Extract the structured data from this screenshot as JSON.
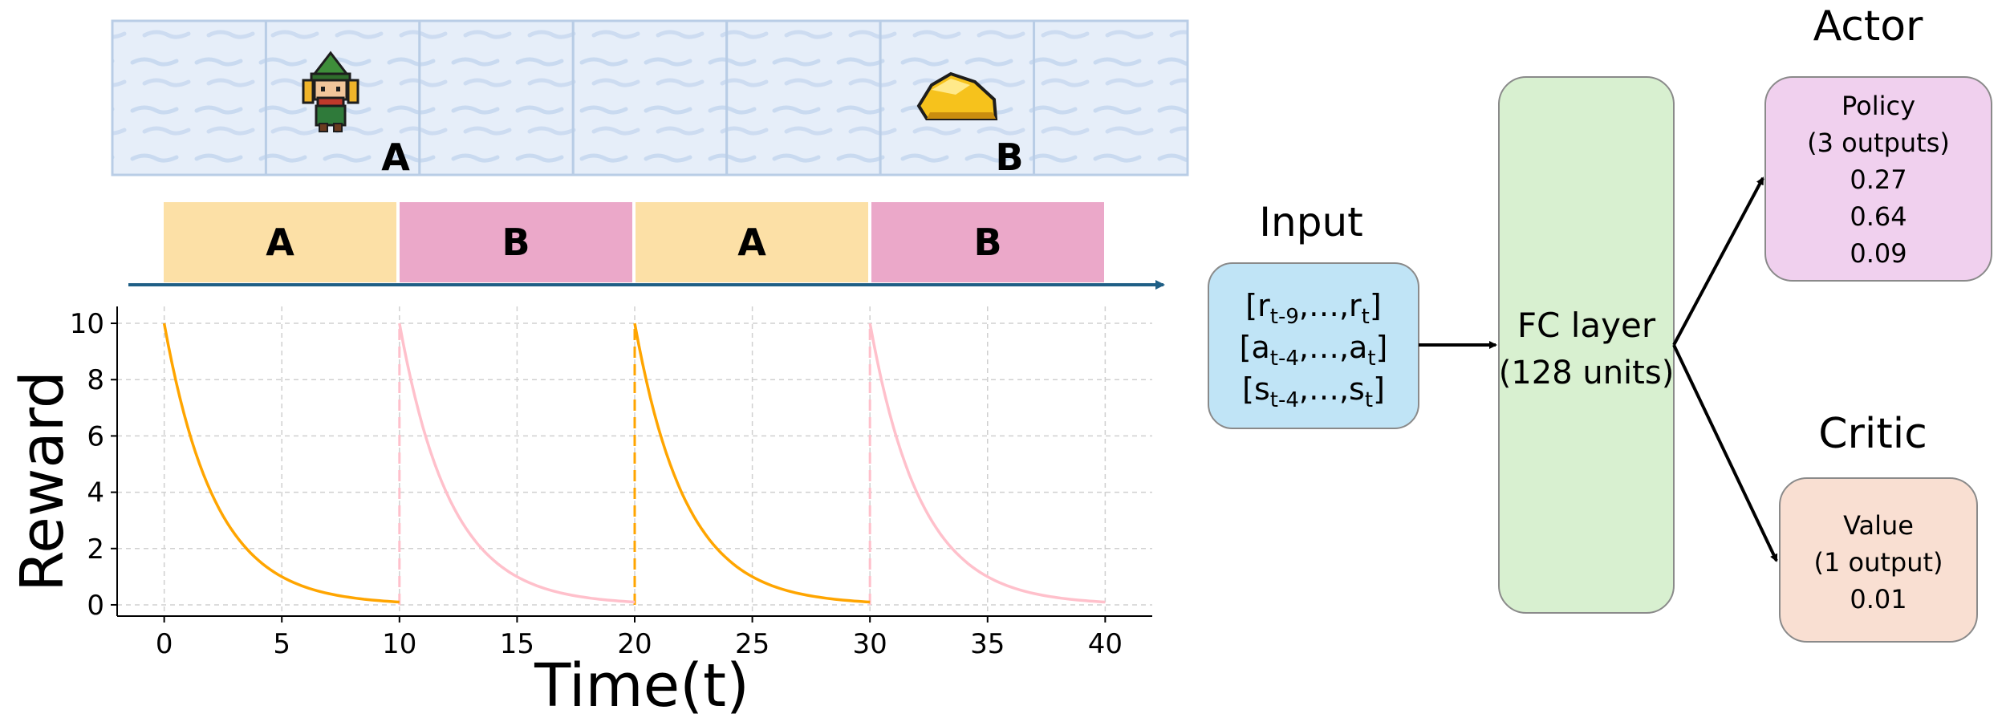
{
  "environment": {
    "agent_label": "A",
    "goal_label": "B",
    "cell_count": 7,
    "tile_color": "#dfeaf7",
    "tile_border": "#b9cde6"
  },
  "phase_bar": {
    "segments": [
      {
        "label": "A",
        "color": "#fce0a6"
      },
      {
        "label": "B",
        "color": "#eba8c9"
      },
      {
        "label": "A",
        "color": "#fce0a6"
      },
      {
        "label": "B",
        "color": "#eba8c9"
      }
    ],
    "arrow_color": "#1f5f86"
  },
  "chart_data": {
    "type": "line",
    "xlabel": "Time(t)",
    "ylabel": "Reward",
    "xlim": [
      -2,
      42
    ],
    "ylim": [
      -0.4,
      10.6
    ],
    "xticks": [
      0,
      5,
      10,
      15,
      20,
      25,
      30,
      35,
      40
    ],
    "yticks": [
      0,
      2,
      4,
      6,
      8,
      10
    ],
    "grid": true,
    "series": [
      {
        "segment": "A",
        "color": "#ffa500",
        "x": [
          0,
          1,
          2,
          3,
          4,
          5,
          6,
          7,
          8,
          9,
          10
        ],
        "values": [
          10.0,
          6.7,
          4.49,
          3.01,
          2.02,
          1.35,
          0.91,
          0.61,
          0.41,
          0.27,
          0.1
        ]
      },
      {
        "segment": "B",
        "color": "#ffc0cb",
        "x": [
          10,
          11,
          12,
          13,
          14,
          15,
          16,
          17,
          18,
          19,
          20
        ],
        "values": [
          10.0,
          6.7,
          4.49,
          3.01,
          2.02,
          1.35,
          0.91,
          0.61,
          0.41,
          0.27,
          0.1
        ]
      },
      {
        "segment": "A",
        "color": "#ffa500",
        "x": [
          20,
          21,
          22,
          23,
          24,
          25,
          26,
          27,
          28,
          29,
          30
        ],
        "values": [
          10.0,
          6.7,
          4.49,
          3.01,
          2.02,
          1.35,
          0.91,
          0.61,
          0.41,
          0.27,
          0.1
        ]
      },
      {
        "segment": "B",
        "color": "#ffc0cb",
        "x": [
          30,
          31,
          32,
          33,
          34,
          35,
          36,
          37,
          38,
          39,
          40
        ],
        "values": [
          10.0,
          6.7,
          4.49,
          3.01,
          2.02,
          1.35,
          0.91,
          0.61,
          0.41,
          0.27,
          0.1
        ]
      }
    ],
    "switch_lines": [
      {
        "x": 10,
        "color": "#ffc0cb"
      },
      {
        "x": 20,
        "color": "#ffa500"
      },
      {
        "x": 30,
        "color": "#ffc0cb"
      }
    ]
  },
  "network": {
    "input": {
      "title": "Input",
      "rows": [
        {
          "open": "[",
          "v1": "r",
          "s1": "t-9",
          "mid": ",…,",
          "v2": "r",
          "s2": "t",
          "close": "]"
        },
        {
          "open": "[",
          "v1": "a",
          "s1": "t-4",
          "mid": ",…,",
          "v2": "a",
          "s2": "t",
          "close": "]"
        },
        {
          "open": "[",
          "v1": "s",
          "s1": "t-4",
          "mid": ",…,",
          "v2": "s",
          "s2": "t",
          "close": "]"
        }
      ],
      "color": "#c0e4f6"
    },
    "fc": {
      "line1": "FC layer",
      "line2": "(128 units)",
      "color": "#d8f0d0"
    },
    "actor": {
      "title": "Actor",
      "lines": [
        "Policy",
        "(3 outputs)",
        "0.27",
        "0.64",
        "0.09"
      ],
      "color": "#f0d0ee"
    },
    "critic": {
      "title": "Critic",
      "lines": [
        "Value",
        "(1 output)",
        "0.01"
      ],
      "color": "#f9dfd2"
    }
  }
}
